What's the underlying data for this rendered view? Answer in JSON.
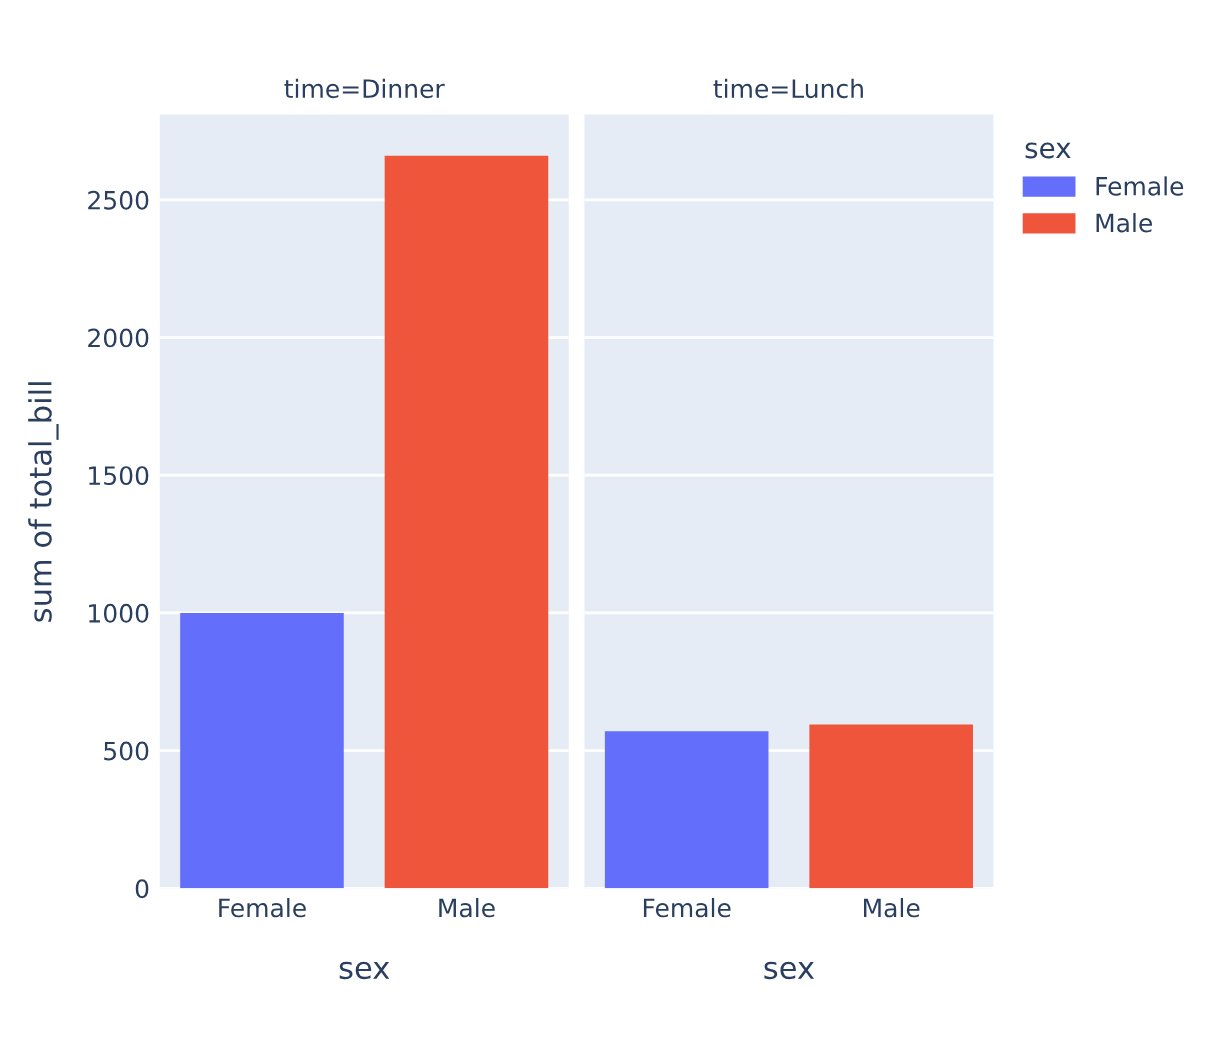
{
  "chart_data": [
    {
      "type": "bar",
      "title": "time=Dinner",
      "xlabel": "sex",
      "ylabel": "sum of total_bill",
      "categories": [
        "Female",
        "Male"
      ],
      "series": [
        {
          "color": "#636efa",
          "values": [
            1000,
            null
          ]
        },
        {
          "color": "#ef553b",
          "values": [
            null,
            2660
          ]
        }
      ],
      "ylim": [
        0,
        2810
      ],
      "yticks": [
        0,
        500,
        1000,
        1500,
        2000,
        2500
      ],
      "grid": "y"
    },
    {
      "type": "bar",
      "title": "time=Lunch",
      "xlabel": "sex",
      "categories": [
        "Female",
        "Male"
      ],
      "series": [
        {
          "name": "Female",
          "color": "#636efa",
          "values": [
            570,
            null
          ]
        },
        {
          "name": "Male",
          "color": "#ef553b",
          "values": [
            null,
            595
          ]
        }
      ],
      "ylim": [
        0,
        2810
      ],
      "yticks": [
        0,
        500,
        1000,
        1500,
        2000,
        2500
      ],
      "grid": "y",
      "tick_labels": "x",
      "legend": "right",
      "legend_title": "sex"
    }
  ]
}
